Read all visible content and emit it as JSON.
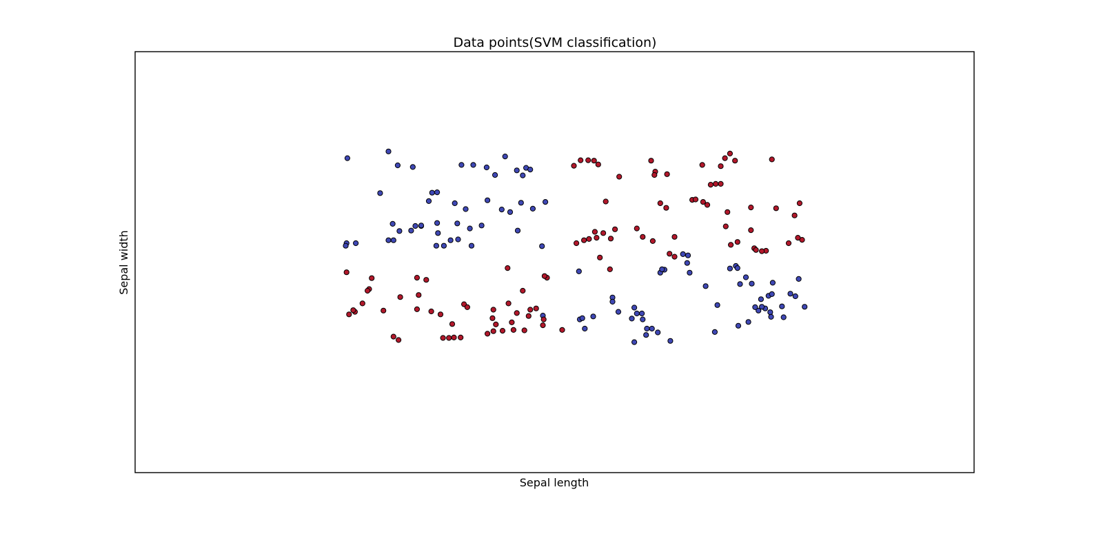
{
  "chart_data": {
    "type": "scatter",
    "title": "Data points(SVM classification)",
    "xlabel": "Sepal length",
    "ylabel": "Sepal width",
    "xticks": [],
    "yticks": [],
    "grid": false,
    "legend": "none",
    "xlim": [
      0,
      10
    ],
    "ylim": [
      0,
      10
    ],
    "series": [
      {
        "color": "#3f48b5",
        "points": [
          [
            2.53,
            7.47
          ],
          [
            3.02,
            7.63
          ],
          [
            3.13,
            7.3
          ],
          [
            3.31,
            7.26
          ],
          [
            3.89,
            7.31
          ],
          [
            4.03,
            7.31
          ],
          [
            4.19,
            7.25
          ],
          [
            4.29,
            7.07
          ],
          [
            4.41,
            7.51
          ],
          [
            4.55,
            7.18
          ],
          [
            4.62,
            7.06
          ],
          [
            4.66,
            7.24
          ],
          [
            4.71,
            7.2
          ],
          [
            2.92,
            6.64
          ],
          [
            3.5,
            6.45
          ],
          [
            3.54,
            6.65
          ],
          [
            3.6,
            6.66
          ],
          [
            3.81,
            6.4
          ],
          [
            3.94,
            6.26
          ],
          [
            4.2,
            6.47
          ],
          [
            4.37,
            6.25
          ],
          [
            4.47,
            6.19
          ],
          [
            4.6,
            6.41
          ],
          [
            4.74,
            6.27
          ],
          [
            4.89,
            6.43
          ],
          [
            3.61,
            5.69
          ],
          [
            3.41,
            5.86
          ],
          [
            3.34,
            5.86
          ],
          [
            3.07,
            5.91
          ],
          [
            3.15,
            5.74
          ],
          [
            3.29,
            5.75
          ],
          [
            3.6,
            5.93
          ],
          [
            3.76,
            5.52
          ],
          [
            2.63,
            5.45
          ],
          [
            2.52,
            5.45
          ],
          [
            2.51,
            5.39
          ],
          [
            3.02,
            5.52
          ],
          [
            3.08,
            5.52
          ],
          [
            3.59,
            5.39
          ],
          [
            3.68,
            5.39
          ],
          [
            3.41,
            5.87
          ],
          [
            3.84,
            5.92
          ],
          [
            3.99,
            5.8
          ],
          [
            3.85,
            5.54
          ],
          [
            4.13,
            5.87
          ],
          [
            4.01,
            5.39
          ],
          [
            4.56,
            5.75
          ],
          [
            4.85,
            5.38
          ],
          [
            5.29,
            4.78
          ],
          [
            5.3,
            3.64
          ],
          [
            5.69,
            4.16
          ],
          [
            5.95,
            3.92
          ],
          [
            5.92,
            3.66
          ],
          [
            5.98,
            3.78
          ],
          [
            6.09,
            3.27
          ],
          [
            6.38,
            3.13
          ],
          [
            6.26,
            4.75
          ],
          [
            6.31,
            4.82
          ],
          [
            6.58,
            4.98
          ],
          [
            6.53,
            5.19
          ],
          [
            6.59,
            5.16
          ],
          [
            6.61,
            4.75
          ],
          [
            6.8,
            4.43
          ],
          [
            7.16,
            4.91
          ],
          [
            7.18,
            4.86
          ],
          [
            7.21,
            4.48
          ],
          [
            7.28,
            4.64
          ],
          [
            7.35,
            4.49
          ],
          [
            7.6,
            4.51
          ],
          [
            7.46,
            4.12
          ],
          [
            7.55,
            4.2
          ],
          [
            7.59,
            4.24
          ],
          [
            7.87,
            4.19
          ],
          [
            7.81,
            4.25
          ],
          [
            7.91,
            4.6
          ],
          [
            7.71,
            3.95
          ],
          [
            7.57,
            3.81
          ],
          [
            7.51,
            3.9
          ],
          [
            7.47,
            3.94
          ],
          [
            7.43,
            3.85
          ],
          [
            7.31,
            3.58
          ],
          [
            6.94,
            3.98
          ],
          [
            6.28,
            4.83
          ],
          [
            5.69,
            4.06
          ],
          [
            5.33,
            3.67
          ],
          [
            5.76,
            3.82
          ],
          [
            6.1,
            3.42
          ],
          [
            6.05,
            3.64
          ],
          [
            5.95,
            3.1
          ],
          [
            4.86,
            3.73
          ],
          [
            5.36,
            3.42
          ],
          [
            5.46,
            3.71
          ],
          [
            6.16,
            3.42
          ],
          [
            6.04,
            3.78
          ],
          [
            6.23,
            3.33
          ],
          [
            7.58,
            3.7
          ],
          [
            7.73,
            3.69
          ],
          [
            7.39,
            3.93
          ],
          [
            7.19,
            3.49
          ],
          [
            7.98,
            3.94
          ],
          [
            6.91,
            3.34
          ],
          [
            7.09,
            4.85
          ]
        ]
      },
      {
        "color": "#b2182b",
        "points": [
          [
            5.31,
            7.42
          ],
          [
            5.23,
            7.29
          ],
          [
            5.4,
            7.42
          ],
          [
            5.47,
            7.41
          ],
          [
            5.52,
            7.32
          ],
          [
            5.61,
            6.44
          ],
          [
            5.77,
            7.03
          ],
          [
            6.15,
            7.41
          ],
          [
            6.2,
            7.15
          ],
          [
            6.26,
            6.4
          ],
          [
            6.33,
            6.29
          ],
          [
            6.19,
            7.07
          ],
          [
            6.34,
            7.09
          ],
          [
            6.64,
            6.48
          ],
          [
            6.98,
            7.28
          ],
          [
            7.03,
            7.47
          ],
          [
            7.15,
            7.41
          ],
          [
            7.09,
            7.58
          ],
          [
            6.76,
            7.31
          ],
          [
            6.82,
            6.36
          ],
          [
            6.86,
            6.84
          ],
          [
            6.92,
            6.86
          ],
          [
            6.98,
            6.86
          ],
          [
            6.68,
            6.49
          ],
          [
            6.77,
            6.43
          ],
          [
            7.34,
            6.3
          ],
          [
            7.59,
            7.44
          ],
          [
            7.06,
            6.19
          ],
          [
            7.04,
            5.85
          ],
          [
            7.34,
            5.76
          ],
          [
            7.52,
            5.27
          ],
          [
            7.47,
            5.26
          ],
          [
            7.95,
            5.53
          ],
          [
            7.38,
            5.33
          ],
          [
            7.4,
            5.29
          ],
          [
            7.18,
            5.48
          ],
          [
            7.1,
            5.41
          ],
          [
            7.92,
            6.4
          ],
          [
            7.64,
            6.28
          ],
          [
            7.86,
            6.11
          ],
          [
            7.9,
            5.58
          ],
          [
            7.79,
            5.45
          ],
          [
            5.48,
            5.72
          ],
          [
            5.41,
            5.55
          ],
          [
            5.5,
            5.58
          ],
          [
            5.35,
            5.52
          ],
          [
            5.26,
            5.45
          ],
          [
            5.58,
            5.69
          ],
          [
            5.67,
            5.56
          ],
          [
            5.72,
            5.78
          ],
          [
            6.05,
            5.6
          ],
          [
            6.17,
            5.5
          ],
          [
            6.43,
            5.6
          ],
          [
            6.37,
            5.2
          ],
          [
            5.54,
            5.11
          ],
          [
            5.66,
            4.83
          ],
          [
            5.98,
            5.8
          ],
          [
            4.91,
            4.63
          ],
          [
            4.78,
            3.9
          ],
          [
            4.44,
            4.86
          ],
          [
            4.62,
            4.32
          ],
          [
            4.88,
            4.67
          ],
          [
            4.71,
            3.87
          ],
          [
            2.52,
            4.76
          ],
          [
            2.82,
            4.62
          ],
          [
            3.36,
            4.63
          ],
          [
            3.47,
            4.58
          ],
          [
            3.38,
            4.22
          ],
          [
            3.16,
            4.17
          ],
          [
            2.79,
            4.36
          ],
          [
            2.77,
            4.32
          ],
          [
            2.55,
            3.76
          ],
          [
            2.71,
            4.02
          ],
          [
            2.62,
            3.82
          ],
          [
            2.6,
            3.86
          ],
          [
            2.96,
            3.85
          ],
          [
            3.53,
            3.83
          ],
          [
            3.64,
            3.76
          ],
          [
            3.92,
            4.0
          ],
          [
            3.96,
            3.93
          ],
          [
            4.26,
            3.67
          ],
          [
            4.49,
            3.57
          ],
          [
            4.69,
            3.72
          ],
          [
            4.87,
            3.64
          ],
          [
            4.55,
            3.79
          ],
          [
            4.45,
            4.02
          ],
          [
            4.27,
            3.87
          ],
          [
            4.3,
            3.52
          ],
          [
            3.36,
            3.88
          ],
          [
            3.74,
            3.2
          ],
          [
            3.78,
            3.53
          ],
          [
            4.2,
            3.3
          ],
          [
            4.27,
            3.36
          ],
          [
            4.38,
            3.37
          ],
          [
            4.51,
            3.39
          ],
          [
            4.64,
            3.38
          ],
          [
            4.86,
            3.5
          ],
          [
            5.09,
            3.39
          ],
          [
            6.43,
            5.13
          ],
          [
            3.88,
            3.21
          ],
          [
            3.14,
            3.15
          ],
          [
            3.08,
            3.23
          ],
          [
            3.67,
            3.2
          ],
          [
            3.8,
            3.21
          ]
        ]
      }
    ]
  }
}
